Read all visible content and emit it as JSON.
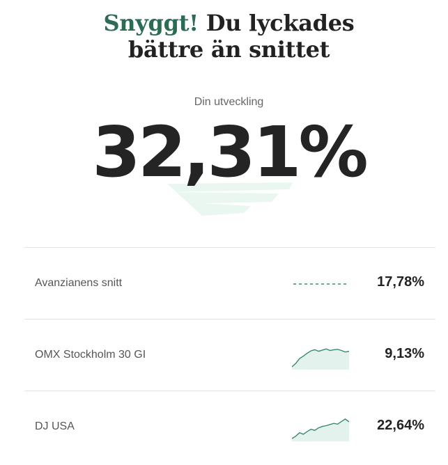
{
  "headline": {
    "accent": "Snyggt!",
    "rest_line1": "Du lyckades",
    "line2": "bättre än snittet"
  },
  "performance": {
    "label": "Din utveckling",
    "value": "32,31%"
  },
  "comparisons": [
    {
      "label": "Avanzianens snitt",
      "value": "17,78%",
      "chart_style": "dashed",
      "line": []
    },
    {
      "label": "OMX Stockholm 30 GI",
      "value": "9,13%",
      "chart_style": "sparkline",
      "line": [
        0.0,
        0.18,
        0.42,
        0.55,
        0.7,
        0.82,
        0.88,
        0.8,
        0.86,
        0.92,
        0.84,
        0.88,
        0.9,
        0.84,
        0.76,
        0.8
      ]
    },
    {
      "label": "DJ USA",
      "value": "22,64%",
      "chart_style": "sparkline",
      "line": [
        0.0,
        0.12,
        0.3,
        0.22,
        0.36,
        0.48,
        0.42,
        0.55,
        0.62,
        0.66,
        0.72,
        0.78,
        0.74,
        0.88,
        1.0,
        0.86
      ]
    }
  ],
  "colors": {
    "accent": "#2c6b54",
    "chart_line": "#3a8a6a",
    "chart_fill": "#e3f2ec",
    "brush": "#e7f6ee",
    "divider": "#e2e2e2"
  }
}
